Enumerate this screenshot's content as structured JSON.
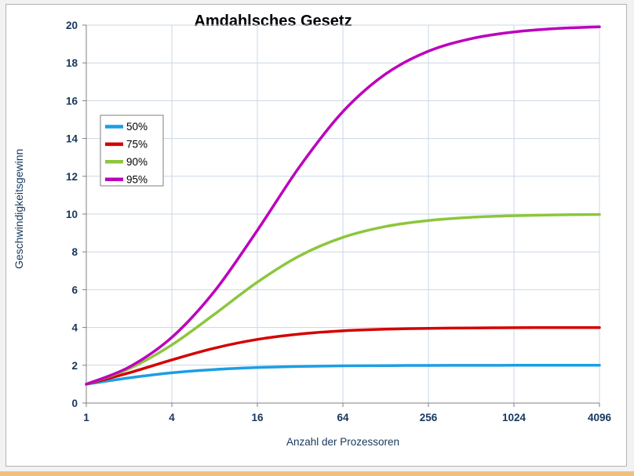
{
  "page": {
    "background": "#F2F2F2",
    "frame_border": "#B3B3B3",
    "bottom_strip": "#F0C080"
  },
  "chart_data": {
    "type": "line",
    "title": "Amdahlsches Gesetz",
    "xlabel": "Anzahl der Prozessoren",
    "ylabel": "Geschwindigkeitsgewinn",
    "x_scale": "log2",
    "x": [
      1,
      2,
      4,
      8,
      16,
      32,
      64,
      128,
      256,
      512,
      1024,
      2048,
      4096
    ],
    "x_ticks": [
      1,
      4,
      16,
      64,
      256,
      1024,
      4096
    ],
    "y_ticks": [
      0,
      2,
      4,
      6,
      8,
      10,
      12,
      14,
      16,
      18,
      20
    ],
    "ylim": [
      0,
      20
    ],
    "grid": true,
    "legend_position": "inside-upper-left",
    "series": [
      {
        "name": "50%",
        "color": "#1C9EE3",
        "values": [
          1.0,
          1.333,
          1.6,
          1.778,
          1.882,
          1.939,
          1.969,
          1.984,
          1.992,
          1.996,
          1.998,
          1.999,
          2.0
        ]
      },
      {
        "name": "75%",
        "color": "#D40000",
        "values": [
          1.0,
          1.6,
          2.286,
          2.909,
          3.368,
          3.657,
          3.821,
          3.908,
          3.953,
          3.977,
          3.988,
          3.994,
          3.997
        ]
      },
      {
        "name": "90%",
        "color": "#8CC63E",
        "values": [
          1.0,
          1.818,
          3.077,
          4.706,
          6.4,
          7.805,
          8.767,
          9.343,
          9.661,
          9.828,
          9.913,
          9.957,
          9.978
        ]
      },
      {
        "name": "95%",
        "color": "#BC00BC",
        "values": [
          1.0,
          1.905,
          3.478,
          5.926,
          9.143,
          12.549,
          15.422,
          17.415,
          18.618,
          19.283,
          19.636,
          19.818,
          19.908
        ]
      }
    ],
    "style": {
      "grid_color": "#C9D7E6",
      "axis_color": "#808080",
      "tick_label_color": "#17375D",
      "axis_title_color": "#17375D",
      "title_color": "#000000",
      "legend_border": "#7F7F7F",
      "legend_text_color": "#000000",
      "plot_background": "#FFFFFF"
    }
  }
}
